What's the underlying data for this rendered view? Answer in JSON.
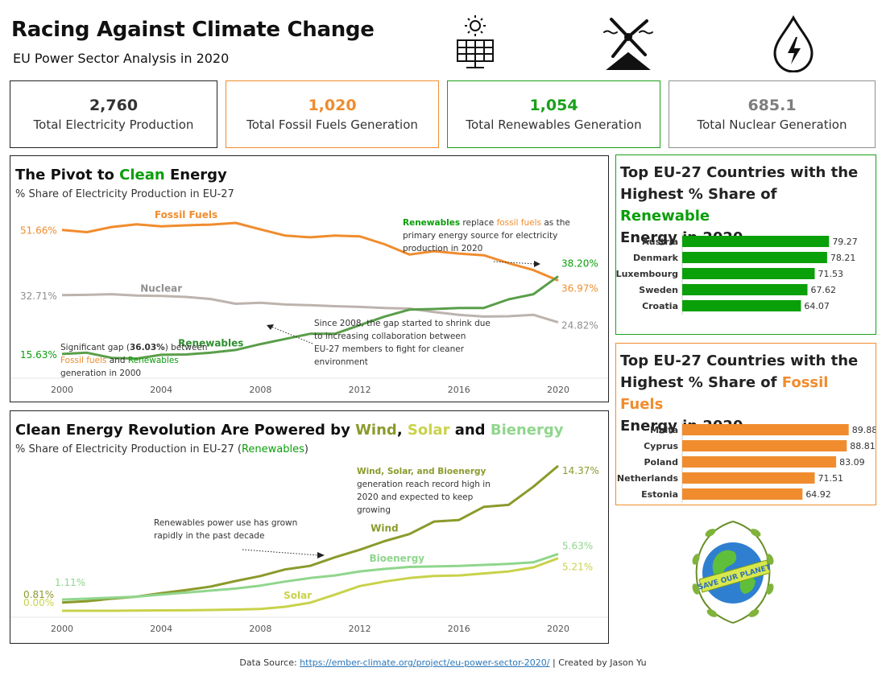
{
  "header": {
    "title": "Racing Against Climate Change",
    "subtitle": "EU Power Sector Analysis in 2020",
    "icons": [
      "solar-panel-icon",
      "wind-turbine-icon",
      "hydro-drop-icon"
    ]
  },
  "kpis": [
    {
      "value": "2,760",
      "label": "Total Electricity Production",
      "color": "#333333",
      "border": "#222222"
    },
    {
      "value": "1,020",
      "label": "Total Fossil Fuels Generation",
      "color": "#f08c2e",
      "border": "#f08c2e"
    },
    {
      "value": "1,054",
      "label": "Total Renewables Generation",
      "color": "#19a019",
      "border": "#19a019"
    },
    {
      "value": "685.1",
      "label": "Total Nuclear Generation",
      "color": "#7d7d7d",
      "border": "#8f8f8f"
    }
  ],
  "colors": {
    "fossil": "#f08c2e",
    "nuclear": "#bdb3ae",
    "renewables": "#5a9e4a",
    "green": "#0a9e0a",
    "wind": "#8c9a2c",
    "solar": "#c9d24a",
    "bioenergy": "#8fd68c"
  },
  "pivot": {
    "title_pre": "The Pivot to ",
    "title_hl": "Clean",
    "title_post": " Energy",
    "subtitle": "% Share of Electricity Production in EU-27",
    "annotations": {
      "replace": [
        "Renewables replace fossil fuels as the",
        "primary energy source for electricity",
        "production in 2020"
      ],
      "gap": [
        "Since 2008, the gap started to shrink due",
        "to increasing collaboration between",
        "EU-27 members to fight for cleaner",
        "environment"
      ],
      "significant_pre": "Significant gap (",
      "significant_bold": "36.03%",
      "significant_post": ") between",
      "significant_line2_a": "Fossil fuels",
      "significant_line2_b": " and ",
      "significant_line2_c": "Renewables",
      "significant_line3": "generation in 2000",
      "replace_word1": "Renewables",
      "replace_mid": " replace ",
      "replace_word2": "fossil fuels",
      "replace_end": " as the"
    }
  },
  "revolution": {
    "title_pre": "Clean Energy Revolution Are Powered by ",
    "title_w": "Wind",
    "title_c1": ", ",
    "title_s": "Solar",
    "title_and": " and ",
    "title_b": "Bienergy",
    "subtitle_pre": "% Share of Electricity Production in EU-27 (",
    "subtitle_hl": "Renewables",
    "subtitle_post": ")",
    "ann_record": [
      "Wind, Solar, and Bioenergy",
      "generation reach record high in",
      "2020 and expected to keep",
      "growing"
    ],
    "ann_grown": [
      "Renewables power use has grown",
      "rapidly in the past decade"
    ]
  },
  "top_renew": {
    "title_lines": [
      "Top EU-27 Countries with the",
      "Highest % Share of ",
      "Energy in 2020"
    ],
    "title_hl": "Renewable"
  },
  "top_fossil": {
    "title_lines": [
      "Top EU-27 Countries with the",
      "Highest % Share of ",
      "Energy in 2020"
    ],
    "title_hl": "Fossil Fuels"
  },
  "chart_data": [
    {
      "type": "line",
      "title": "The Pivot to Clean Energy",
      "subtitle": "% Share of Electricity Production in EU-27",
      "x": [
        2000,
        2001,
        2002,
        2003,
        2004,
        2005,
        2006,
        2007,
        2008,
        2009,
        2010,
        2011,
        2012,
        2013,
        2014,
        2015,
        2016,
        2017,
        2018,
        2019,
        2020
      ],
      "xticks": [
        2000,
        2004,
        2008,
        2012,
        2016,
        2020
      ],
      "ylim": [
        10,
        60
      ],
      "series": [
        {
          "name": "Fossil Fuels",
          "values": [
            51.66,
            51.0,
            52.5,
            53.3,
            52.7,
            53.0,
            53.2,
            53.7,
            51.8,
            50.0,
            49.5,
            50.0,
            49.8,
            47.5,
            44.5,
            45.5,
            44.8,
            44.3,
            42.0,
            40.0,
            36.97
          ]
        },
        {
          "name": "Nuclear",
          "values": [
            32.71,
            32.8,
            33.0,
            32.6,
            32.5,
            32.2,
            31.6,
            30.2,
            30.5,
            30.0,
            29.8,
            29.5,
            29.3,
            29.0,
            28.8,
            27.8,
            27.0,
            26.5,
            26.6,
            27.0,
            24.82
          ]
        },
        {
          "name": "Renewables",
          "values": [
            15.63,
            16.0,
            14.5,
            14.3,
            15.4,
            15.5,
            16.0,
            16.8,
            18.5,
            20.0,
            21.5,
            21.5,
            24.0,
            26.5,
            28.5,
            28.7,
            29.0,
            29.0,
            31.5,
            33.0,
            38.2
          ]
        }
      ],
      "labels_start": [
        "51.66%",
        "32.71%",
        "15.63%"
      ],
      "labels_end": [
        "36.97%",
        "24.82%",
        "38.20%"
      ]
    },
    {
      "type": "line",
      "title": "Clean Energy Revolution Are Powered by Wind, Solar and Bienergy",
      "subtitle": "% Share of Electricity Production in EU-27 (Renewables)",
      "x": [
        2000,
        2001,
        2002,
        2003,
        2004,
        2005,
        2006,
        2007,
        2008,
        2009,
        2010,
        2011,
        2012,
        2013,
        2014,
        2015,
        2016,
        2017,
        2018,
        2019,
        2020
      ],
      "xticks": [
        2000,
        2004,
        2008,
        2012,
        2016,
        2020
      ],
      "ylim": [
        0,
        15
      ],
      "series": [
        {
          "name": "Wind",
          "values": [
            0.81,
            0.95,
            1.2,
            1.4,
            1.75,
            2.05,
            2.4,
            2.95,
            3.45,
            4.1,
            4.45,
            5.3,
            6.05,
            6.9,
            7.6,
            8.85,
            9.0,
            10.3,
            10.5,
            12.3,
            14.37
          ]
        },
        {
          "name": "Bioenergy",
          "values": [
            1.11,
            1.2,
            1.3,
            1.4,
            1.6,
            1.8,
            2.0,
            2.2,
            2.5,
            2.9,
            3.25,
            3.5,
            3.9,
            4.15,
            4.35,
            4.4,
            4.45,
            4.55,
            4.65,
            4.8,
            5.63
          ]
        },
        {
          "name": "Solar",
          "values": [
            0.0,
            0.0,
            0.0,
            0.02,
            0.04,
            0.05,
            0.08,
            0.12,
            0.18,
            0.4,
            0.8,
            1.6,
            2.45,
            2.9,
            3.25,
            3.45,
            3.5,
            3.7,
            3.9,
            4.3,
            5.21
          ]
        }
      ],
      "labels_start": [
        "0.81%",
        "1.11%",
        "0.00%"
      ],
      "labels_end": [
        "14.37%",
        "5.63%",
        "5.21%"
      ]
    },
    {
      "type": "bar",
      "title": "Top EU-27 Countries with the Highest % Share of Renewable Energy in 2020",
      "categories": [
        "Austria",
        "Denmark",
        "Luxembourg",
        "Sweden",
        "Croatia"
      ],
      "values": [
        79.27,
        78.21,
        71.53,
        67.62,
        64.07
      ],
      "value_labels": [
        "79.27",
        "78.21",
        "71.53",
        "67.62",
        "64.07"
      ],
      "xlim": [
        0,
        100
      ]
    },
    {
      "type": "bar",
      "title": "Top EU-27 Countries with the Highest % Share of Fossil Fuels Energy in 2020",
      "categories": [
        "Malta",
        "Cyprus",
        "Poland",
        "Netherlands",
        "Estonia"
      ],
      "values": [
        89.88,
        88.81,
        83.09,
        71.51,
        64.92
      ],
      "value_labels": [
        "89.88",
        "88.81",
        "83.09",
        "71.51",
        "64.92"
      ],
      "xlim": [
        0,
        100
      ]
    }
  ],
  "footer": {
    "prefix": "Data Source: ",
    "link": "https://ember-climate.org/project/eu-power-sector-2020/",
    "suffix": " | Created by Jason Yu"
  },
  "logo": {
    "text": "SAVE OUR PLANET"
  }
}
